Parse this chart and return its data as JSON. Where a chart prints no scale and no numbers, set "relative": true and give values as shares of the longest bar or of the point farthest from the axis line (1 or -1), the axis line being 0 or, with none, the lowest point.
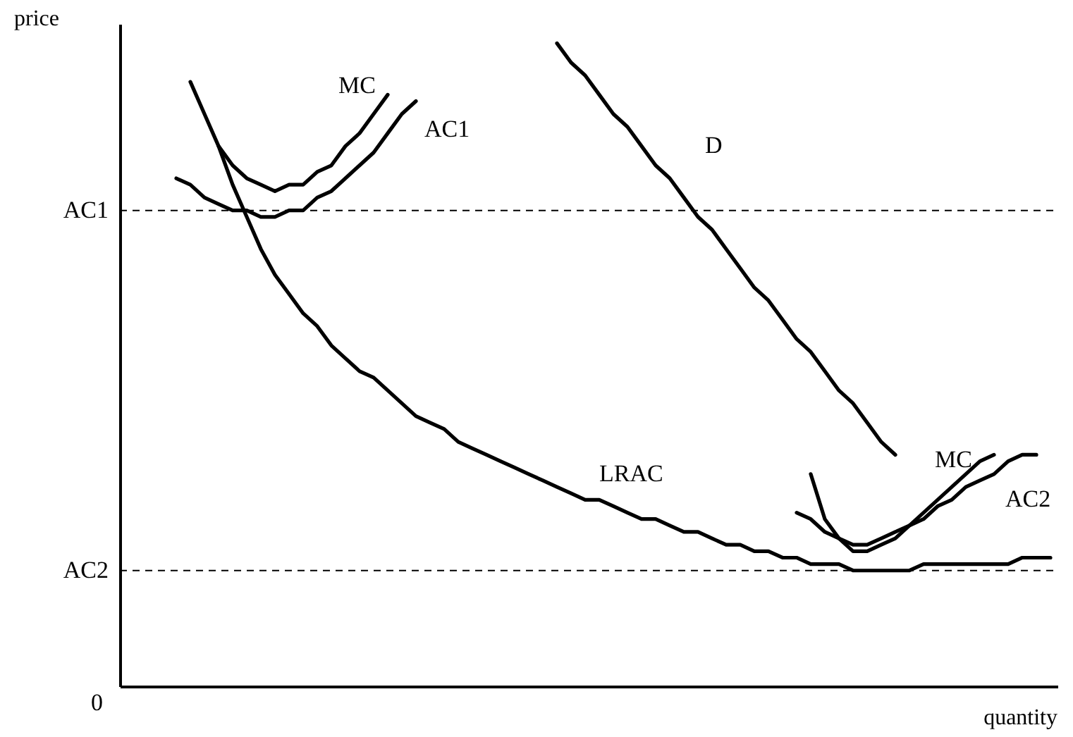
{
  "chart_data": {
    "type": "line",
    "relative": true,
    "xlabel": "quantity",
    "ylabel": "price",
    "annotations": [
      "0"
    ],
    "line_style": "solid",
    "categories": [
      null,
      null,
      null,
      null,
      null,
      null,
      null,
      null,
      null,
      null,
      null,
      null,
      null,
      null,
      null,
      null,
      null,
      null,
      null,
      null,
      null,
      null,
      null,
      null,
      null,
      null,
      null,
      null,
      null,
      null,
      null,
      null,
      null,
      null,
      null,
      null,
      null,
      null,
      null,
      null,
      null,
      null,
      null,
      null,
      null,
      null,
      null,
      null,
      null,
      null,
      null,
      null,
      null,
      null,
      null,
      null,
      null,
      null,
      null,
      null,
      null,
      null,
      null,
      null,
      null,
      null,
      null
    ],
    "series": [
      {
        "name": "LRAC",
        "color": "#000000",
        "values": [
          null,
          null,
          null,
          null,
          null,
          null,
          null,
          0.84,
          0.78,
          0.73,
          0.68,
          0.64,
          0.61,
          0.58,
          0.56,
          0.53,
          0.51,
          0.49,
          0.48,
          0.46,
          0.44,
          0.42,
          0.41,
          0.4,
          0.38,
          0.37,
          0.36,
          0.35,
          0.34,
          0.33,
          0.32,
          0.31,
          0.3,
          0.29,
          0.29,
          0.28,
          0.27,
          0.26,
          0.26,
          0.25,
          0.24,
          0.24,
          0.23,
          0.22,
          0.22,
          0.21,
          0.21,
          0.2,
          0.2,
          0.19,
          0.19,
          0.19,
          0.18,
          0.18,
          0.18,
          0.18,
          0.18,
          0.19,
          0.19,
          0.19,
          0.19,
          0.19,
          0.19,
          0.19,
          0.2,
          0.2,
          0.2
        ]
      },
      {
        "name": "MC",
        "color": "#000000",
        "values": [
          null,
          null,
          null,
          null,
          null,
          0.94,
          0.89,
          0.84,
          0.81,
          0.79,
          0.78,
          0.77,
          0.78,
          0.78,
          0.8,
          0.81,
          0.84,
          0.86,
          0.89,
          0.92,
          null,
          null,
          null,
          null,
          null,
          null,
          null,
          null,
          null,
          null,
          null,
          null,
          null,
          null,
          null,
          null,
          null,
          null,
          null,
          null,
          null,
          null,
          null,
          null,
          null,
          null,
          null,
          null,
          null,
          null,
          null,
          null,
          null,
          null,
          null,
          null,
          null,
          null,
          null,
          null,
          null,
          null,
          null,
          null,
          null,
          null,
          null
        ]
      },
      {
        "name": "AC1",
        "color": "#000000",
        "values": [
          null,
          null,
          null,
          null,
          0.79,
          0.78,
          0.76,
          0.75,
          0.74,
          0.74,
          0.73,
          0.73,
          0.74,
          0.74,
          0.76,
          0.77,
          0.79,
          0.81,
          0.83,
          0.86,
          0.89,
          0.91,
          null,
          null,
          null,
          null,
          null,
          null,
          null,
          null,
          null,
          null,
          null,
          null,
          null,
          null,
          null,
          null,
          null,
          null,
          null,
          null,
          null,
          null,
          null,
          null,
          null,
          null,
          null,
          null,
          null,
          null,
          null,
          null,
          null,
          null,
          null,
          null,
          null,
          null,
          null,
          null,
          null,
          null,
          null,
          null,
          null
        ]
      },
      {
        "name": "D",
        "color": "#000000",
        "values": [
          null,
          null,
          null,
          null,
          null,
          null,
          null,
          null,
          null,
          null,
          null,
          null,
          null,
          null,
          null,
          null,
          null,
          null,
          null,
          null,
          null,
          null,
          null,
          null,
          null,
          null,
          null,
          null,
          null,
          null,
          null,
          1.0,
          0.97,
          0.95,
          0.92,
          0.89,
          0.87,
          0.84,
          0.81,
          0.79,
          0.76,
          0.73,
          0.71,
          0.68,
          0.65,
          0.62,
          0.6,
          0.57,
          0.54,
          0.52,
          0.49,
          0.46,
          0.44,
          0.41,
          0.38,
          0.36,
          null,
          null,
          null,
          null,
          null,
          null,
          null,
          null,
          null,
          null,
          null
        ]
      },
      {
        "name": "MC",
        "color": "#000000",
        "values": [
          null,
          null,
          null,
          null,
          null,
          null,
          null,
          null,
          null,
          null,
          null,
          null,
          null,
          null,
          null,
          null,
          null,
          null,
          null,
          null,
          null,
          null,
          null,
          null,
          null,
          null,
          null,
          null,
          null,
          null,
          null,
          null,
          null,
          null,
          null,
          null,
          null,
          null,
          null,
          null,
          null,
          null,
          null,
          null,
          null,
          null,
          null,
          null,
          null,
          0.33,
          0.26,
          0.23,
          0.21,
          0.21,
          0.22,
          0.23,
          0.25,
          0.27,
          0.29,
          0.31,
          0.33,
          0.35,
          0.36,
          null,
          null,
          null,
          null
        ]
      },
      {
        "name": "AC2",
        "color": "#000000",
        "values": [
          null,
          null,
          null,
          null,
          null,
          null,
          null,
          null,
          null,
          null,
          null,
          null,
          null,
          null,
          null,
          null,
          null,
          null,
          null,
          null,
          null,
          null,
          null,
          null,
          null,
          null,
          null,
          null,
          null,
          null,
          null,
          null,
          null,
          null,
          null,
          null,
          null,
          null,
          null,
          null,
          null,
          null,
          null,
          null,
          null,
          null,
          null,
          null,
          0.27,
          0.26,
          0.24,
          0.23,
          0.22,
          0.22,
          0.23,
          0.24,
          0.25,
          0.26,
          0.28,
          0.29,
          0.31,
          0.32,
          0.33,
          0.35,
          0.36,
          0.36,
          null
        ]
      }
    ],
    "ref_lines": [
      {
        "axis": "y",
        "value": 0.74,
        "label": "AC1",
        "line_style": "dashed",
        "color": "#000000"
      },
      {
        "axis": "y",
        "value": 0.18,
        "label": "AC2",
        "line_style": "dashed",
        "color": "#000000"
      }
    ]
  }
}
